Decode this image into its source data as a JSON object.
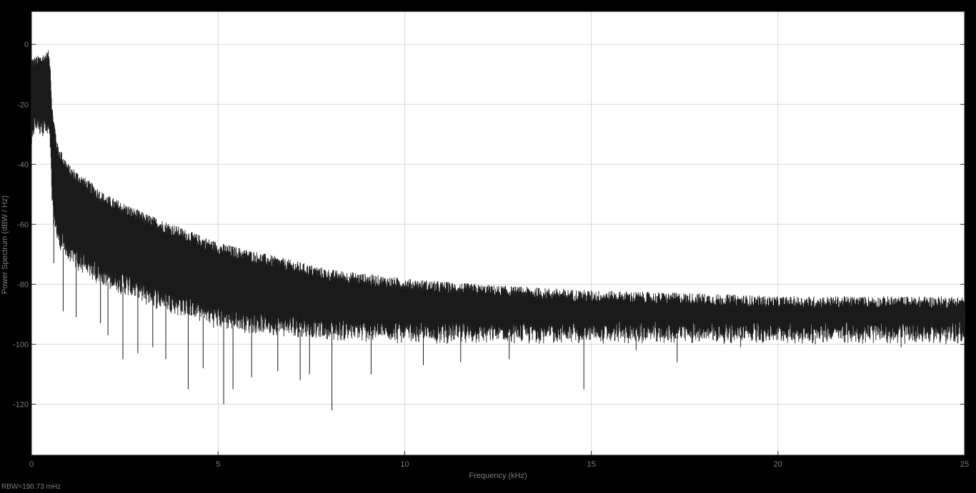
{
  "chart_data": {
    "type": "line",
    "title": "",
    "xlabel": "Frequency (kHz)",
    "ylabel": "Power Spectrum (dBW / Hz)",
    "xlim": [
      0,
      25
    ],
    "ylim": [
      -137,
      11
    ],
    "x_ticks": [
      0,
      5,
      10,
      15,
      20,
      25
    ],
    "x_tick_labels": [
      "0",
      "5",
      "10",
      "15",
      "20",
      "25"
    ],
    "y_ticks": [
      0,
      -20,
      -40,
      -60,
      -80,
      -100,
      -120
    ],
    "y_tick_labels": [
      "0",
      "-20",
      "-40",
      "-60",
      "-80",
      "-100",
      "-120"
    ],
    "grid": true,
    "series": [
      {
        "color": "#1a1a1a",
        "envelope_upper": {
          "x": [
            0,
            0.1,
            0.3,
            0.45,
            0.5,
            0.55,
            0.7,
            1,
            1.5,
            2,
            2.5,
            3,
            4,
            5,
            6,
            7,
            8,
            10,
            12,
            15,
            18,
            20,
            22,
            25
          ],
          "y": [
            -6,
            -6,
            -5,
            -4,
            -6,
            -22,
            -35,
            -42,
            -47,
            -52,
            -55,
            -58,
            -63,
            -68,
            -71,
            -74,
            -77,
            -80,
            -82,
            -84,
            -85,
            -86,
            -86,
            -86
          ]
        },
        "envelope_lower": {
          "x": [
            0,
            0.1,
            0.3,
            0.45,
            0.5,
            0.55,
            0.7,
            1,
            1.5,
            2,
            2.5,
            3,
            4,
            5,
            6,
            7,
            8,
            10,
            12,
            15,
            18,
            20,
            22,
            25
          ],
          "y": [
            -33,
            -27,
            -28,
            -30,
            -33,
            -55,
            -65,
            -71,
            -75,
            -79,
            -81,
            -84,
            -88,
            -92,
            -94,
            -95,
            -96,
            -97,
            -97,
            -97,
            -97,
            -97,
            -97,
            -97
          ]
        },
        "deep_nulls": [
          {
            "x": 0.6,
            "y": -73
          },
          {
            "x": 0.85,
            "y": -89
          },
          {
            "x": 1.2,
            "y": -91
          },
          {
            "x": 1.85,
            "y": -93
          },
          {
            "x": 2.05,
            "y": -97
          },
          {
            "x": 2.45,
            "y": -105
          },
          {
            "x": 2.85,
            "y": -103
          },
          {
            "x": 3.25,
            "y": -101
          },
          {
            "x": 3.6,
            "y": -105
          },
          {
            "x": 4.2,
            "y": -115
          },
          {
            "x": 4.6,
            "y": -108
          },
          {
            "x": 5.15,
            "y": -120
          },
          {
            "x": 5.4,
            "y": -115
          },
          {
            "x": 5.9,
            "y": -111
          },
          {
            "x": 6.6,
            "y": -109
          },
          {
            "x": 7.2,
            "y": -112
          },
          {
            "x": 7.45,
            "y": -110
          },
          {
            "x": 8.05,
            "y": -122
          },
          {
            "x": 9.1,
            "y": -110
          },
          {
            "x": 10.5,
            "y": -107
          },
          {
            "x": 11.5,
            "y": -106
          },
          {
            "x": 12.8,
            "y": -105
          },
          {
            "x": 14.8,
            "y": -115
          },
          {
            "x": 16.2,
            "y": -102
          },
          {
            "x": 17.3,
            "y": -106
          },
          {
            "x": 19.0,
            "y": -101
          },
          {
            "x": 21.0,
            "y": -100
          },
          {
            "x": 23.3,
            "y": -101
          },
          {
            "x": 24.5,
            "y": -100
          }
        ]
      }
    ]
  },
  "footer": {
    "rbw_text": "RBW=190.73 mHz"
  },
  "colors": {
    "figure_background": "#000000",
    "axes_background": "#ffffff",
    "grid": "#d9d9d9",
    "text": "#7f7f7f",
    "trace": "#1a1a1a"
  }
}
